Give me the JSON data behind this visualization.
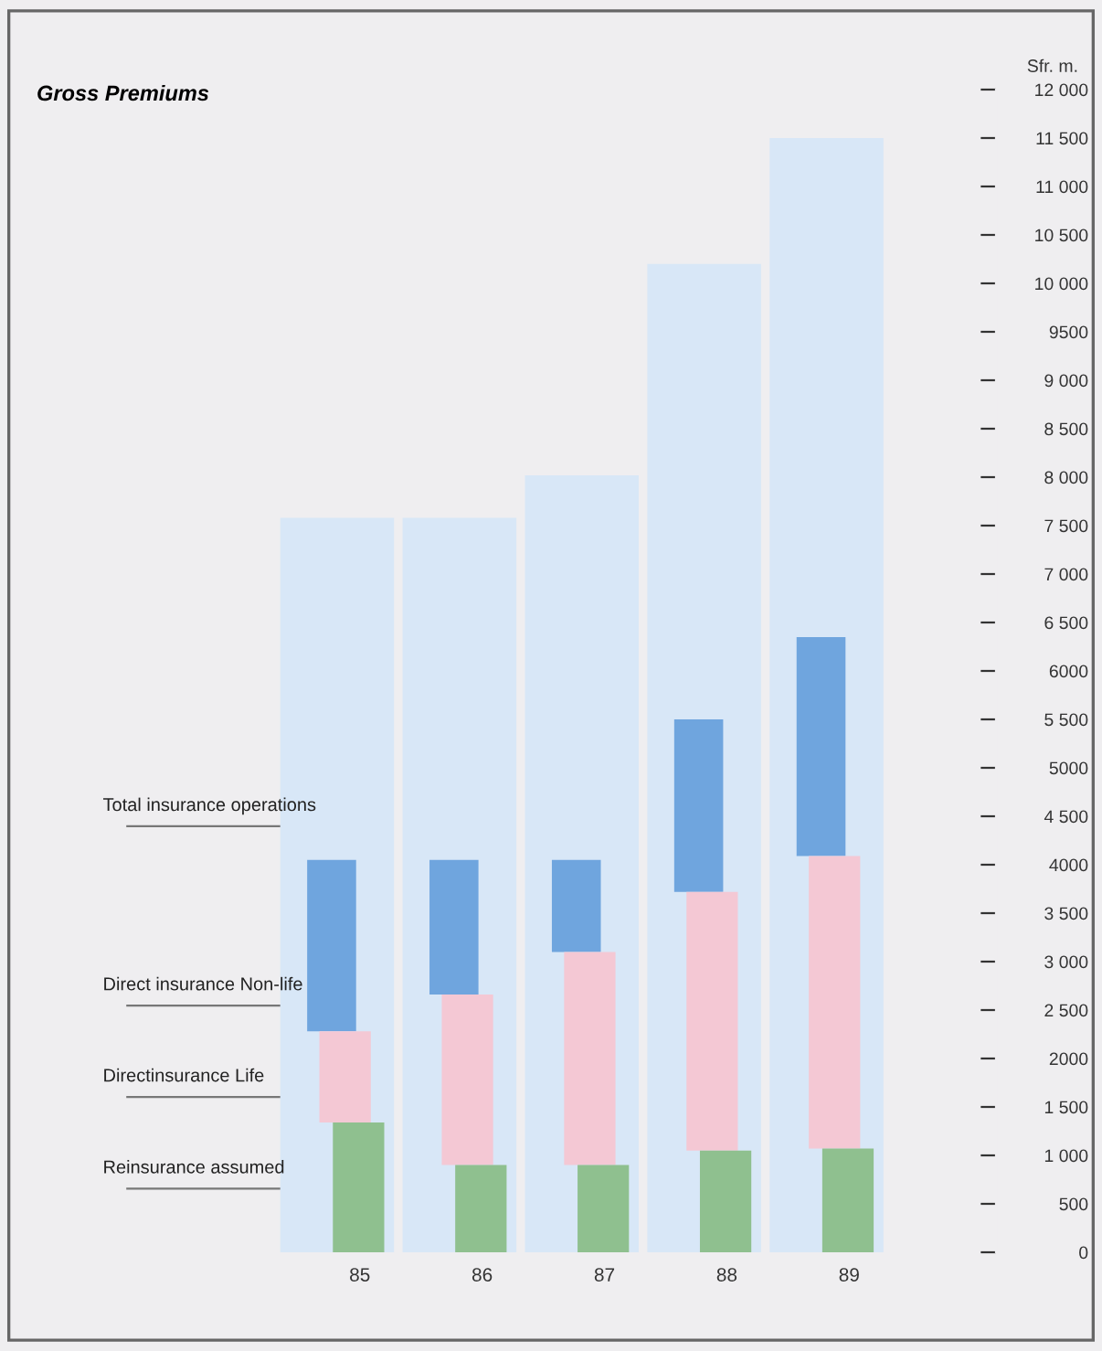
{
  "chart_data": {
    "type": "bar",
    "title": "Gross Premiums",
    "ylabel": "Sfr. m.",
    "categories": [
      "85",
      "86",
      "87",
      "88",
      "89"
    ],
    "series": [
      {
        "name": "Total insurance operations",
        "color": "#d8e7f7",
        "values": [
          7580,
          7580,
          8020,
          10200,
          11500
        ],
        "base": [
          0,
          0,
          0,
          0,
          0
        ]
      },
      {
        "name": "Direct insurance Non-life",
        "color": "#6fa5de",
        "values": [
          1770,
          1390,
          950,
          1780,
          2260
        ],
        "base": [
          2280,
          2660,
          3100,
          3720,
          4090
        ]
      },
      {
        "name": "Directinsurance Life",
        "color": "#f4c8d4",
        "values": [
          940,
          1760,
          2200,
          2670,
          3020
        ],
        "base": [
          1340,
          900,
          900,
          1050,
          1070
        ]
      },
      {
        "name": "Reinsurance assumed",
        "color": "#8fc08f",
        "values": [
          1340,
          900,
          900,
          1050,
          1070
        ],
        "base": [
          0,
          0,
          0,
          0,
          0
        ]
      }
    ],
    "ylim": [
      0,
      12000
    ],
    "yticks": [
      0,
      500,
      {
        "value": 1000,
        "label": "1 000"
      },
      {
        "value": 1500,
        "label": "1 500"
      },
      2000,
      {
        "value": 2500,
        "label": "2 500"
      },
      {
        "value": 3000,
        "label": "3 000"
      },
      {
        "value": 3500,
        "label": "3 500"
      },
      4000,
      {
        "value": 4500,
        "label": "4 500"
      },
      5000,
      {
        "value": 5500,
        "label": "5 500"
      },
      6000,
      {
        "value": 6500,
        "label": "6 500"
      },
      {
        "value": 7000,
        "label": "7 000"
      },
      {
        "value": 7500,
        "label": "7 500"
      },
      {
        "value": 8000,
        "label": "8 000"
      },
      {
        "value": 8500,
        "label": "8 500"
      },
      {
        "value": 9000,
        "label": "9 000"
      },
      9500,
      {
        "value": 10000,
        "label": "10 000"
      },
      {
        "value": 10500,
        "label": "10 500"
      },
      {
        "value": 11000,
        "label": "11 000"
      },
      {
        "value": 11500,
        "label": "11 500"
      },
      {
        "value": 12000,
        "label": "12 000"
      }
    ]
  }
}
